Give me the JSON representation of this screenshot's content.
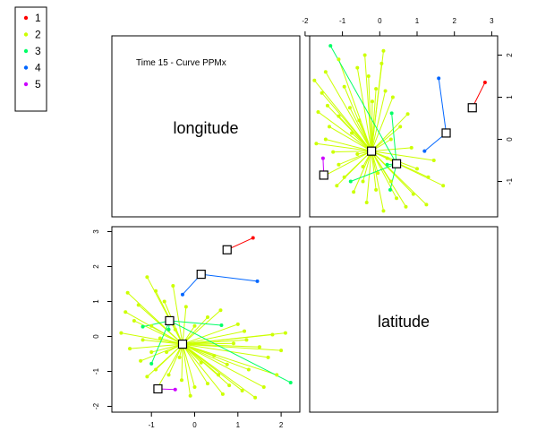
{
  "chart_data": {
    "type": "scatter",
    "title": "Time 15 - Curve PPMx",
    "variables": [
      "longitude",
      "latitude"
    ],
    "legend": {
      "placement": "top-left",
      "entries": [
        {
          "label": "1",
          "color": "#ff0000"
        },
        {
          "label": "2",
          "color": "#ccff00"
        },
        {
          "label": "3",
          "color": "#00ff66"
        },
        {
          "label": "4",
          "color": "#0066ff"
        },
        {
          "label": "5",
          "color": "#cc00ff"
        }
      ]
    },
    "axes": {
      "longitude": {
        "range": [
          -1.8,
          2.3
        ],
        "ticks": [
          "-1",
          "0",
          "1",
          "2"
        ],
        "tick_values": [
          -1,
          0,
          1,
          2
        ]
      },
      "latitude": {
        "range": [
          -2.1,
          3.0
        ],
        "ticks": [
          "-2",
          "-1",
          "0",
          "1",
          "2",
          "3"
        ],
        "tick_values": [
          -2,
          -1,
          0,
          1,
          2,
          3
        ]
      },
      "top_x_ticks": [
        "-2",
        "-1",
        "0",
        "1",
        "2",
        "3"
      ],
      "right_y_ticks": [
        "-1",
        "0",
        "1",
        "2"
      ]
    },
    "clusters": [
      {
        "name": "1",
        "color": "#ff0000",
        "center": [
          0.75,
          2.48
        ],
        "points": [
          [
            1.35,
            2.82
          ]
        ]
      },
      {
        "name": "2",
        "color": "#ccff00",
        "center": [
          -0.28,
          -0.22
        ],
        "points": [
          [
            -1.55,
            1.25
          ],
          [
            -1.3,
            0.9
          ],
          [
            -1.1,
            1.7
          ],
          [
            -0.9,
            1.3
          ],
          [
            -0.7,
            1.0
          ],
          [
            -0.5,
            1.45
          ],
          [
            -1.4,
            0.45
          ],
          [
            -1.7,
            0.1
          ],
          [
            -1.2,
            -0.1
          ],
          [
            -1.0,
            0.3
          ],
          [
            -0.8,
            -0.05
          ],
          [
            -1.5,
            -0.35
          ],
          [
            -1.25,
            -0.7
          ],
          [
            -0.9,
            -0.95
          ],
          [
            -1.1,
            -1.15
          ],
          [
            -0.6,
            -1.1
          ],
          [
            -0.3,
            -1.25
          ],
          [
            0.0,
            -1.45
          ],
          [
            0.3,
            -1.35
          ],
          [
            0.55,
            -1.1
          ],
          [
            0.8,
            -1.4
          ],
          [
            1.1,
            -1.55
          ],
          [
            1.4,
            -1.75
          ],
          [
            1.6,
            -1.45
          ],
          [
            1.9,
            -1.1
          ],
          [
            1.7,
            -0.6
          ],
          [
            2.0,
            -0.4
          ],
          [
            1.5,
            -0.3
          ],
          [
            1.2,
            -0.1
          ],
          [
            1.8,
            0.05
          ],
          [
            2.1,
            0.1
          ],
          [
            1.0,
            0.35
          ],
          [
            0.6,
            0.75
          ],
          [
            0.3,
            0.55
          ],
          [
            0.0,
            0.3
          ],
          [
            -0.2,
            0.85
          ],
          [
            -0.45,
            0.2
          ],
          [
            -0.65,
            -0.45
          ],
          [
            -0.35,
            -0.6
          ],
          [
            0.15,
            -0.75
          ],
          [
            0.45,
            -0.55
          ],
          [
            0.75,
            -0.8
          ],
          [
            1.25,
            -0.95
          ],
          [
            -1.6,
            0.7
          ],
          [
            -0.1,
            -1.7
          ],
          [
            0.65,
            -1.65
          ],
          [
            -0.85,
            -1.45
          ],
          [
            1.15,
            0.15
          ],
          [
            -1.0,
            -0.45
          ],
          [
            0.9,
            -0.2
          ]
        ]
      },
      {
        "name": "3",
        "color": "#00ff66",
        "center": [
          -0.58,
          0.45
        ],
        "points": [
          [
            2.22,
            -1.32
          ],
          [
            -1.0,
            -0.78
          ],
          [
            0.62,
            0.32
          ],
          [
            -0.6,
            0.2
          ],
          [
            -1.2,
            0.28
          ]
        ]
      },
      {
        "name": "4",
        "color": "#0066ff",
        "center": [
          0.15,
          1.78
        ],
        "points": [
          [
            -0.28,
            1.2
          ],
          [
            1.45,
            1.58
          ]
        ]
      },
      {
        "name": "5",
        "color": "#cc00ff",
        "center": [
          -0.85,
          -1.5
        ],
        "points": [
          [
            -0.45,
            -1.52
          ]
        ]
      }
    ]
  }
}
